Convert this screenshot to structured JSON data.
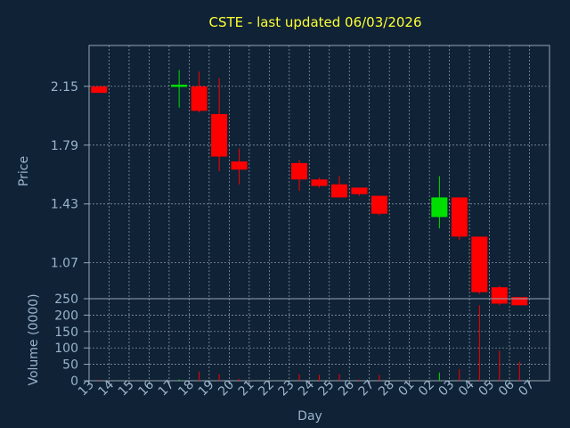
{
  "chart_data": [
    {
      "type": "candlestick",
      "title": "CSTE - last updated 06/03/2026",
      "ylabel": "Price",
      "ylim": [
        0.85,
        2.4
      ],
      "yticks": [
        1.07,
        1.43,
        1.79,
        2.15
      ],
      "grid": true,
      "categories": [
        "13",
        "14",
        "15",
        "16",
        "17",
        "18",
        "19",
        "20",
        "21",
        "22",
        "23",
        "24",
        "25",
        "26",
        "27",
        "28",
        "01",
        "02",
        "03",
        "04",
        "05",
        "06",
        "07"
      ],
      "candles": [
        {
          "x": "13",
          "open": 2.15,
          "high": 2.15,
          "low": 2.11,
          "close": 2.11
        },
        {
          "x": "17",
          "open": 2.15,
          "high": 2.25,
          "low": 2.02,
          "close": 2.16
        },
        {
          "x": "18",
          "open": 2.15,
          "high": 2.24,
          "low": 1.99,
          "close": 2.0
        },
        {
          "x": "19",
          "open": 1.98,
          "high": 2.2,
          "low": 1.63,
          "close": 1.72
        },
        {
          "x": "20",
          "open": 1.69,
          "high": 1.77,
          "low": 1.55,
          "close": 1.64
        },
        {
          "x": "23",
          "open": 1.68,
          "high": 1.7,
          "low": 1.51,
          "close": 1.58
        },
        {
          "x": "24",
          "open": 1.58,
          "high": 1.59,
          "low": 1.53,
          "close": 1.54
        },
        {
          "x": "25",
          "open": 1.55,
          "high": 1.6,
          "low": 1.47,
          "close": 1.47
        },
        {
          "x": "26",
          "open": 1.53,
          "high": 1.53,
          "low": 1.48,
          "close": 1.49
        },
        {
          "x": "27",
          "open": 1.48,
          "high": 1.48,
          "low": 1.36,
          "close": 1.37
        },
        {
          "x": "02",
          "open": 1.35,
          "high": 1.6,
          "low": 1.28,
          "close": 1.47
        },
        {
          "x": "03",
          "open": 1.47,
          "high": 1.47,
          "low": 1.21,
          "close": 1.23
        },
        {
          "x": "04",
          "open": 1.23,
          "high": 1.23,
          "low": 0.88,
          "close": 0.89
        },
        {
          "x": "05",
          "open": 0.92,
          "high": 0.93,
          "low": 0.81,
          "close": 0.82
        },
        {
          "x": "06",
          "open": 0.86,
          "high": 0.86,
          "low": 0.81,
          "close": 0.81
        }
      ]
    },
    {
      "type": "bar",
      "ylabel": "Volume (0000)",
      "xlabel": "Day",
      "ylim": [
        0,
        250
      ],
      "yticks": [
        0,
        50,
        100,
        150,
        200,
        250
      ],
      "grid": true,
      "categories": [
        "13",
        "14",
        "15",
        "16",
        "17",
        "18",
        "19",
        "20",
        "21",
        "22",
        "23",
        "24",
        "25",
        "26",
        "27",
        "28",
        "01",
        "02",
        "03",
        "04",
        "05",
        "06",
        "07"
      ],
      "values": [
        {
          "x": "13",
          "v": 3,
          "up": false
        },
        {
          "x": "17",
          "v": 4,
          "up": true
        },
        {
          "x": "18",
          "v": 28,
          "up": false
        },
        {
          "x": "19",
          "v": 20,
          "up": false
        },
        {
          "x": "20",
          "v": 6,
          "up": false
        },
        {
          "x": "23",
          "v": 20,
          "up": false
        },
        {
          "x": "24",
          "v": 18,
          "up": false
        },
        {
          "x": "25",
          "v": 20,
          "up": false
        },
        {
          "x": "26",
          "v": 4,
          "up": false
        },
        {
          "x": "27",
          "v": 18,
          "up": false
        },
        {
          "x": "02",
          "v": 25,
          "up": true
        },
        {
          "x": "03",
          "v": 35,
          "up": false
        },
        {
          "x": "04",
          "v": 230,
          "up": false
        },
        {
          "x": "05",
          "v": 92,
          "up": false
        },
        {
          "x": "06",
          "v": 58,
          "up": false
        }
      ]
    }
  ],
  "colors": {
    "background": "#0f2236",
    "grid": "#9aa6b2",
    "up": "#00e000",
    "down": "#ff0000",
    "text": "#9ab4cc",
    "title": "#ffff33"
  }
}
